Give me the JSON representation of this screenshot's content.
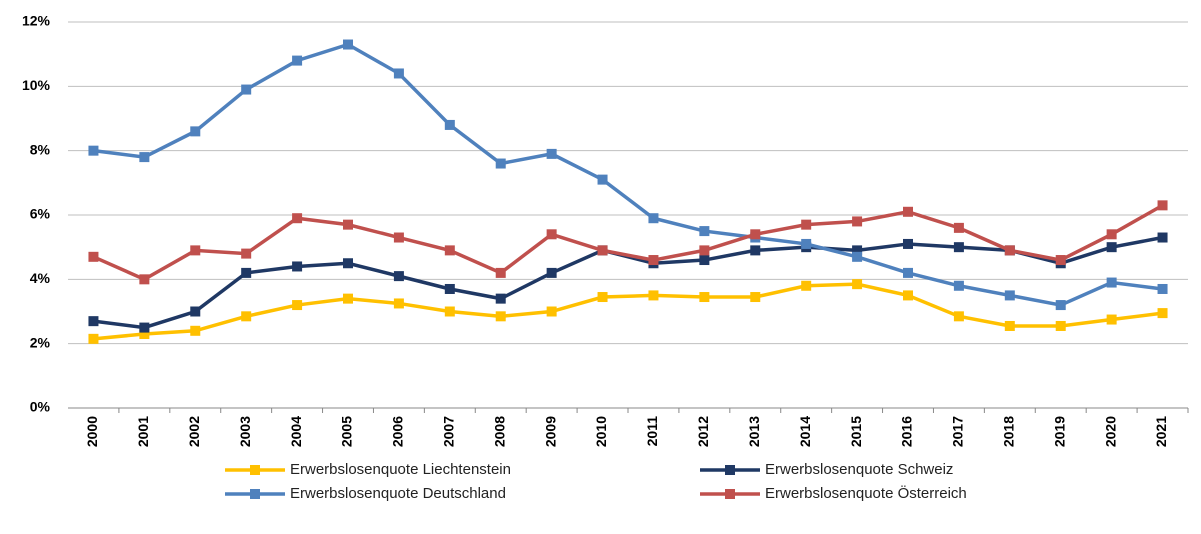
{
  "chart_data": {
    "type": "line",
    "categories": [
      "2000",
      "2001",
      "2002",
      "2003",
      "2004",
      "2005",
      "2006",
      "2007",
      "2008",
      "2009",
      "2010",
      "2011",
      "2012",
      "2013",
      "2014",
      "2015",
      "2016",
      "2017",
      "2018",
      "2019",
      "2020",
      "2021"
    ],
    "series": [
      {
        "name": "Erwerbslosenquote Liechtenstein",
        "color": "#FFC000",
        "values": [
          2.15,
          2.3,
          2.4,
          2.85,
          3.2,
          3.4,
          3.25,
          3.0,
          2.85,
          3.0,
          3.45,
          3.5,
          3.45,
          3.45,
          3.8,
          3.85,
          3.5,
          2.85,
          2.55,
          2.55,
          2.75,
          2.95
        ]
      },
      {
        "name": "Erwerbslosenquote Schweiz",
        "color": "#1F3864",
        "values": [
          2.7,
          2.5,
          3.0,
          4.2,
          4.4,
          4.5,
          4.1,
          3.7,
          3.4,
          4.2,
          4.9,
          4.5,
          4.6,
          4.9,
          5.0,
          4.9,
          5.1,
          5.0,
          4.9,
          4.5,
          5.0,
          5.3
        ]
      },
      {
        "name": "Erwerbslosenquote Deutschland",
        "color": "#4F81BD",
        "values": [
          8.0,
          7.8,
          8.6,
          9.9,
          10.8,
          11.3,
          10.4,
          8.8,
          7.6,
          7.9,
          7.1,
          5.9,
          5.5,
          5.3,
          5.1,
          4.7,
          4.2,
          3.8,
          3.5,
          3.2,
          3.9,
          3.7
        ]
      },
      {
        "name": "Erwerbslosenquote Österreich",
        "color": "#C0504D",
        "values": [
          4.7,
          4.0,
          4.9,
          4.8,
          5.9,
          5.7,
          5.3,
          4.9,
          4.2,
          5.4,
          4.9,
          4.6,
          4.9,
          5.4,
          5.7,
          5.8,
          6.1,
          5.6,
          4.9,
          4.6,
          5.4,
          6.3
        ]
      }
    ],
    "ylim": [
      0,
      12
    ],
    "yticks": [
      {
        "value": 0,
        "label": "0%"
      },
      {
        "value": 2,
        "label": "2%"
      },
      {
        "value": 4,
        "label": "4%"
      },
      {
        "value": 6,
        "label": "6%"
      },
      {
        "value": 8,
        "label": "8%"
      },
      {
        "value": 10,
        "label": "10%"
      },
      {
        "value": 12,
        "label": "12%"
      }
    ],
    "grid": true
  }
}
